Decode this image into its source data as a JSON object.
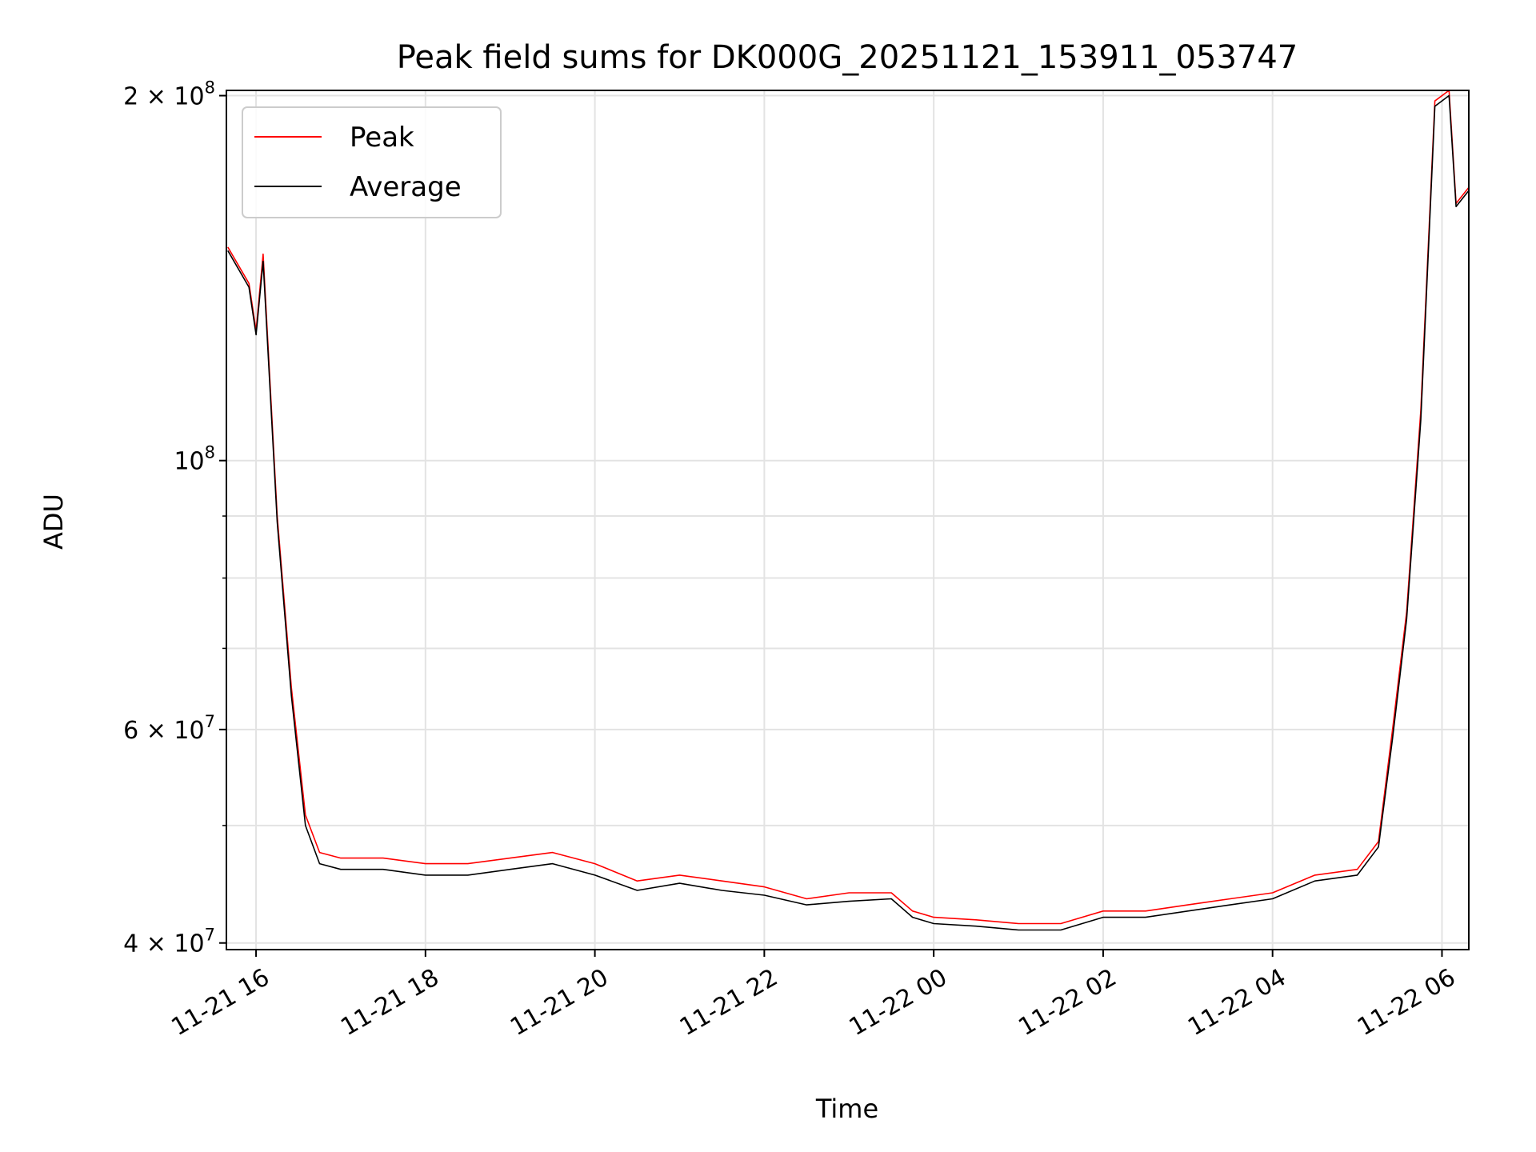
{
  "chart_data": {
    "type": "line",
    "title": "Peak field sums for DK000G_20251121_153911_053747",
    "xlabel": "Time",
    "ylabel": "ADU",
    "yscale": "log",
    "ylim": [
      39500000,
      202000000
    ],
    "xlim": [
      "2025-11-21 15:39",
      "2025-11-22 06:19"
    ],
    "grid": true,
    "legend": "upper left",
    "x_ticks": [
      "11-21 16",
      "11-21 18",
      "11-21 20",
      "11-21 22",
      "11-22 00",
      "11-22 02",
      "11-22 04",
      "11-22 06"
    ],
    "y_ticks": [
      {
        "value": 40000000,
        "label": "4 × 10",
        "exp": "7"
      },
      {
        "value": 60000000,
        "label": "6 × 10",
        "exp": "7"
      },
      {
        "value": 100000000,
        "label": "10",
        "exp": "8"
      },
      {
        "value": 200000000,
        "label": "2 × 10",
        "exp": "8"
      }
    ],
    "series": [
      {
        "name": "Peak",
        "color": "#ff0000",
        "x": [
          "2025-11-21 15:40",
          "2025-11-21 15:55",
          "2025-11-21 16:00",
          "2025-11-21 16:05",
          "2025-11-21 16:15",
          "2025-11-21 16:25",
          "2025-11-21 16:35",
          "2025-11-21 16:45",
          "2025-11-21 17:00",
          "2025-11-21 17:30",
          "2025-11-21 18:00",
          "2025-11-21 18:30",
          "2025-11-21 19:00",
          "2025-11-21 19:30",
          "2025-11-21 20:00",
          "2025-11-21 20:30",
          "2025-11-21 21:00",
          "2025-11-21 21:30",
          "2025-11-21 22:00",
          "2025-11-21 22:30",
          "2025-11-21 23:00",
          "2025-11-21 23:30",
          "2025-11-21 23:45",
          "2025-11-22 00:00",
          "2025-11-22 00:30",
          "2025-11-22 01:00",
          "2025-11-22 01:30",
          "2025-11-22 02:00",
          "2025-11-22 02:30",
          "2025-11-22 03:00",
          "2025-11-22 03:30",
          "2025-11-22 04:00",
          "2025-11-22 04:30",
          "2025-11-22 05:00",
          "2025-11-22 05:15",
          "2025-11-22 05:25",
          "2025-11-22 05:35",
          "2025-11-22 05:45",
          "2025-11-22 05:55",
          "2025-11-22 06:05",
          "2025-11-22 06:10",
          "2025-11-22 06:19"
        ],
        "values": [
          150000000,
          140000000,
          128000000,
          148000000,
          90000000,
          65000000,
          51000000,
          47500000,
          47000000,
          47000000,
          46500000,
          46500000,
          47000000,
          47500000,
          46500000,
          45000000,
          45500000,
          45000000,
          44500000,
          43500000,
          44000000,
          44000000,
          42500000,
          42000000,
          41800000,
          41500000,
          41500000,
          42500000,
          42500000,
          43000000,
          43500000,
          44000000,
          45500000,
          46000000,
          48500000,
          60000000,
          75000000,
          110000000,
          198000000,
          202000000,
          163000000,
          168000000
        ]
      },
      {
        "name": "Average",
        "color": "#000000",
        "x": [
          "2025-11-21 15:40",
          "2025-11-21 15:55",
          "2025-11-21 16:00",
          "2025-11-21 16:05",
          "2025-11-21 16:15",
          "2025-11-21 16:25",
          "2025-11-21 16:35",
          "2025-11-21 16:45",
          "2025-11-21 17:00",
          "2025-11-21 17:30",
          "2025-11-21 18:00",
          "2025-11-21 18:30",
          "2025-11-21 19:00",
          "2025-11-21 19:30",
          "2025-11-21 20:00",
          "2025-11-21 20:30",
          "2025-11-21 21:00",
          "2025-11-21 21:30",
          "2025-11-21 22:00",
          "2025-11-21 22:30",
          "2025-11-21 23:00",
          "2025-11-21 23:30",
          "2025-11-21 23:45",
          "2025-11-22 00:00",
          "2025-11-22 00:30",
          "2025-11-22 01:00",
          "2025-11-22 01:30",
          "2025-11-22 02:00",
          "2025-11-22 02:30",
          "2025-11-22 03:00",
          "2025-11-22 03:30",
          "2025-11-22 04:00",
          "2025-11-22 04:30",
          "2025-11-22 05:00",
          "2025-11-22 05:15",
          "2025-11-22 05:25",
          "2025-11-22 05:35",
          "2025-11-22 05:45",
          "2025-11-22 05:55",
          "2025-11-22 06:05",
          "2025-11-22 06:10",
          "2025-11-22 06:19"
        ],
        "values": [
          149000000,
          139000000,
          127000000,
          146000000,
          89000000,
          64000000,
          50000000,
          46500000,
          46000000,
          46000000,
          45500000,
          45500000,
          46000000,
          46500000,
          45500000,
          44200000,
          44800000,
          44200000,
          43800000,
          43000000,
          43300000,
          43500000,
          42000000,
          41500000,
          41300000,
          41000000,
          41000000,
          42000000,
          42000000,
          42500000,
          43000000,
          43500000,
          45000000,
          45500000,
          48000000,
          59000000,
          74000000,
          108000000,
          196000000,
          200000000,
          162000000,
          167000000
        ]
      }
    ]
  }
}
